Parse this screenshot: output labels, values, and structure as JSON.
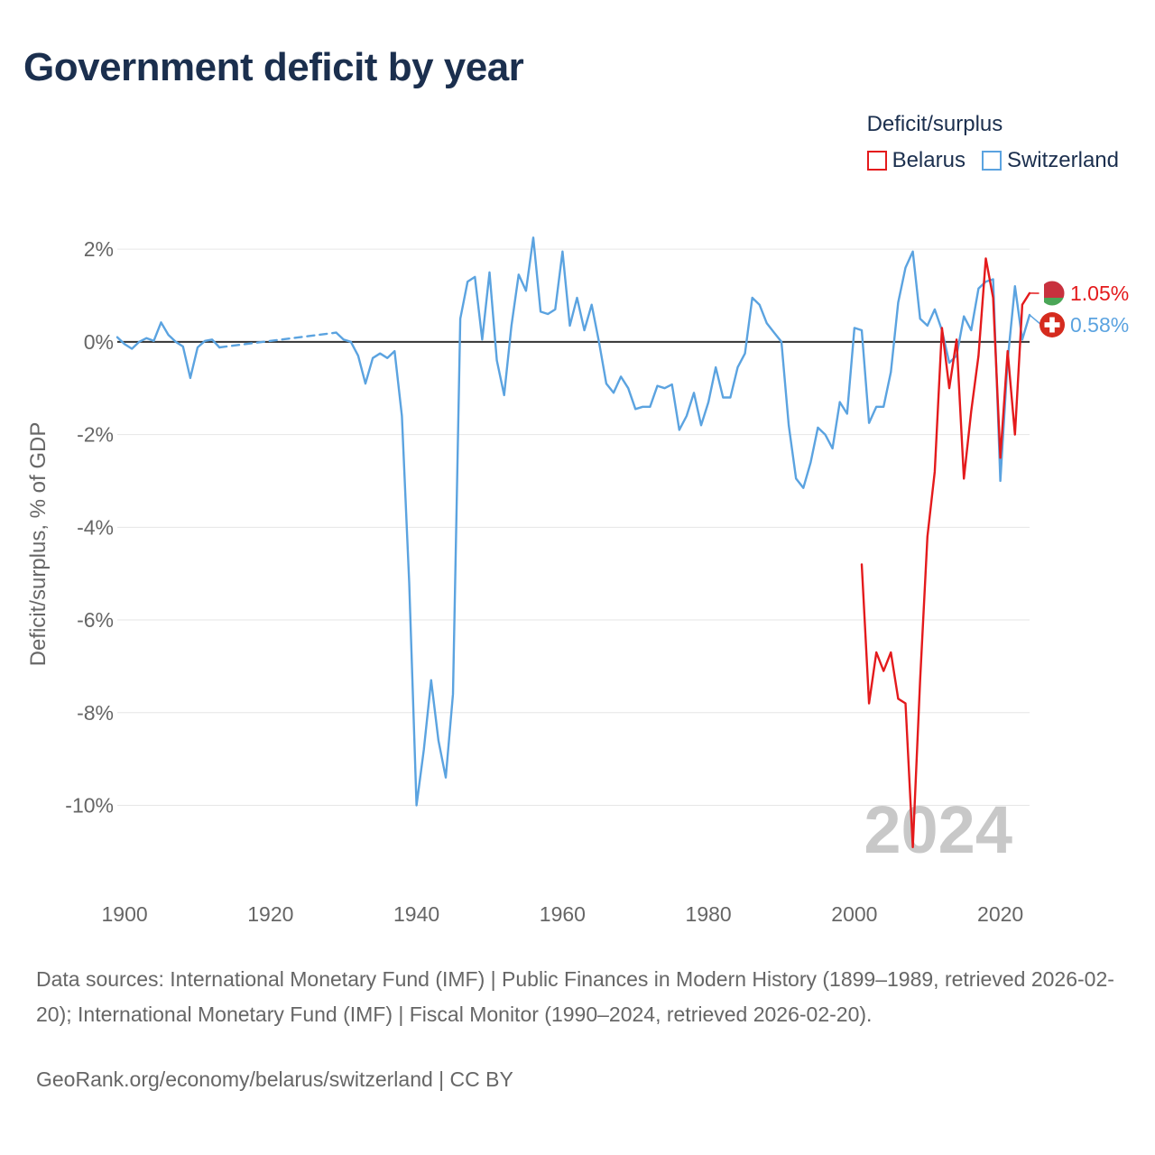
{
  "title": "Government deficit by year",
  "chart_data": {
    "type": "line",
    "title": "Government deficit by year",
    "ylabel": "Deficit/surplus, % of GDP",
    "xlabel": "",
    "xlim": [
      1899,
      2024
    ],
    "ylim": [
      -11.8,
      2.8
    ],
    "x_ticks": [
      1900,
      1920,
      1940,
      1960,
      1980,
      2000,
      2020
    ],
    "y_ticks": [
      {
        "value": 2,
        "label": "2%"
      },
      {
        "value": 0,
        "label": "0%"
      },
      {
        "value": -2,
        "label": "-2%"
      },
      {
        "value": -4,
        "label": "-4%"
      },
      {
        "value": -6,
        "label": "-6%"
      },
      {
        "value": -8,
        "label": "-8%"
      },
      {
        "value": -10,
        "label": "-10%"
      }
    ],
    "year_watermark": "2024",
    "legend_title": "Deficit/surplus",
    "legend_position": "top-right",
    "series": [
      {
        "name": "Belarus",
        "color": "#e41a1c",
        "end_label": "1.05%",
        "x": [
          2001,
          2002,
          2003,
          2004,
          2005,
          2006,
          2007,
          2008,
          2009,
          2010,
          2011,
          2012,
          2013,
          2014,
          2015,
          2016,
          2017,
          2018,
          2019,
          2020,
          2021,
          2022,
          2023,
          2024
        ],
        "y": [
          -4.8,
          -7.8,
          -6.7,
          -7.1,
          -6.7,
          -7.7,
          -7.8,
          -10.9,
          -7.3,
          -4.2,
          -2.8,
          0.3,
          -1.0,
          0.05,
          -2.95,
          -1.5,
          -0.3,
          1.8,
          0.95,
          -2.5,
          -0.2,
          -2.0,
          0.8,
          1.05
        ]
      },
      {
        "name": "Switzerland",
        "color": "#5ba3e0",
        "end_label": "0.58%",
        "segments": [
          {
            "style": "solid",
            "x": [
              1899,
              1900,
              1901,
              1902,
              1903,
              1904,
              1905,
              1906,
              1907,
              1908,
              1909,
              1910,
              1911,
              1912,
              1913
            ],
            "y": [
              0.1,
              -0.05,
              -0.15,
              0.0,
              0.08,
              0.02,
              0.42,
              0.15,
              0.0,
              -0.1,
              -0.78,
              -0.12,
              0.02,
              0.05,
              -0.12
            ]
          },
          {
            "style": "dashed",
            "x": [
              1913,
              1929
            ],
            "y": [
              -0.12,
              0.2
            ]
          },
          {
            "style": "solid",
            "x": [
              1929,
              1930,
              1931,
              1932,
              1933,
              1934,
              1935,
              1936,
              1937,
              1938,
              1939,
              1940,
              1941,
              1942,
              1943,
              1944,
              1945,
              1946,
              1947,
              1948,
              1949,
              1950,
              1951,
              1952,
              1953,
              1954,
              1955,
              1956,
              1957,
              1958,
              1959,
              1960,
              1961,
              1962,
              1963,
              1964,
              1965,
              1966,
              1967,
              1968,
              1969,
              1970,
              1971,
              1972,
              1973,
              1974,
              1975,
              1976,
              1977,
              1978,
              1979,
              1980,
              1981,
              1982,
              1983,
              1984,
              1985,
              1986,
              1987,
              1988,
              1989,
              1990,
              1991,
              1992,
              1993,
              1994,
              1995,
              1996,
              1997,
              1998,
              1999,
              2000,
              2001,
              2002,
              2003,
              2004,
              2005,
              2006,
              2007,
              2008,
              2009,
              2010,
              2011,
              2012,
              2013,
              2014,
              2015,
              2016,
              2017,
              2018,
              2019,
              2020,
              2021,
              2022,
              2023,
              2024
            ],
            "y": [
              0.2,
              0.05,
              0.0,
              -0.3,
              -0.9,
              -0.35,
              -0.25,
              -0.35,
              -0.2,
              -1.6,
              -5.2,
              -10.0,
              -8.8,
              -7.3,
              -8.6,
              -9.4,
              -7.6,
              0.5,
              1.3,
              1.4,
              0.05,
              1.5,
              -0.4,
              -1.15,
              0.35,
              1.45,
              1.1,
              2.25,
              0.65,
              0.6,
              0.7,
              1.95,
              0.35,
              0.95,
              0.25,
              0.8,
              0.0,
              -0.9,
              -1.1,
              -0.75,
              -1.0,
              -1.45,
              -1.4,
              -1.4,
              -0.95,
              -1.0,
              -0.92,
              -1.9,
              -1.6,
              -1.1,
              -1.8,
              -1.3,
              -0.55,
              -1.2,
              -1.2,
              -0.55,
              -0.25,
              0.95,
              0.8,
              0.4,
              0.2,
              0.0,
              -1.8,
              -2.95,
              -3.15,
              -2.6,
              -1.85,
              -2.0,
              -2.3,
              -1.3,
              -1.55,
              0.3,
              0.25,
              -1.75,
              -1.4,
              -1.4,
              -0.65,
              0.85,
              1.6,
              1.95,
              0.5,
              0.35,
              0.7,
              0.25,
              -0.45,
              -0.3,
              0.55,
              0.25,
              1.15,
              1.3,
              1.35,
              -3.0,
              -0.4,
              1.2,
              0.05,
              0.58
            ]
          }
        ]
      }
    ]
  },
  "source_text": "Data sources: International Monetary Fund (IMF) | Public Finances in Modern History (1899–1989, retrieved 2026-02-20); International Monetary Fund (IMF) | Fiscal Monitor (1990–2024, retrieved 2026-02-20).",
  "credit_text": "GeoRank.org/economy/belarus/switzerland | CC BY"
}
